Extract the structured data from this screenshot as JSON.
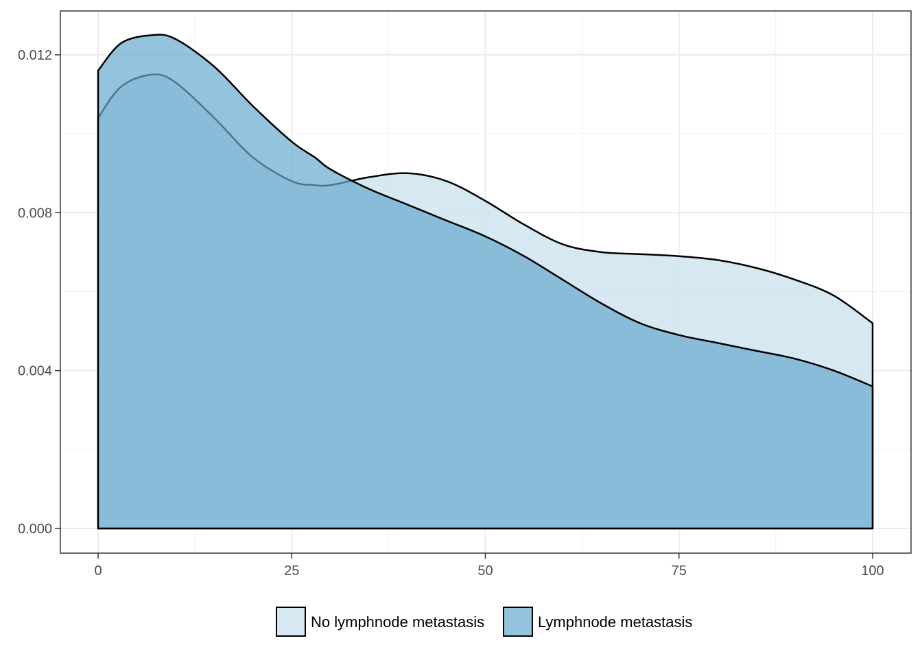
{
  "chart_data": {
    "type": "area",
    "subtype": "density",
    "title": "",
    "xlabel": "",
    "ylabel": "",
    "xlim": [
      0,
      100
    ],
    "ylim": [
      0,
      0.012
    ],
    "x_ticks": [
      "0",
      "25",
      "50",
      "75",
      "100"
    ],
    "y_ticks": [
      "0.000",
      "0.004",
      "0.008",
      "0.012"
    ],
    "grid": true,
    "legend_position": "bottom",
    "x": [
      0,
      3,
      7,
      10,
      15,
      20,
      25,
      28,
      30,
      35,
      40,
      45,
      50,
      55,
      60,
      65,
      70,
      75,
      80,
      85,
      90,
      95,
      100
    ],
    "series": [
      {
        "name": "No lymphnode metastasis",
        "color": "#d1e5f0",
        "values": [
          0.0104,
          0.0112,
          0.0115,
          0.0113,
          0.0104,
          0.0094,
          0.0088,
          0.0087,
          0.0087,
          0.0089,
          0.009,
          0.0088,
          0.0083,
          0.0077,
          0.0072,
          0.007,
          0.00695,
          0.0069,
          0.0068,
          0.0066,
          0.0063,
          0.0059,
          0.0052
        ]
      },
      {
        "name": "Lymphnode metastasis",
        "color": "#67a9cf",
        "values": [
          0.0116,
          0.0123,
          0.0125,
          0.0124,
          0.0117,
          0.0107,
          0.0098,
          0.0094,
          0.0091,
          0.0086,
          0.0082,
          0.0078,
          0.0074,
          0.0069,
          0.0063,
          0.0057,
          0.0052,
          0.0049,
          0.0047,
          0.0045,
          0.0043,
          0.004,
          0.0036
        ]
      }
    ]
  }
}
